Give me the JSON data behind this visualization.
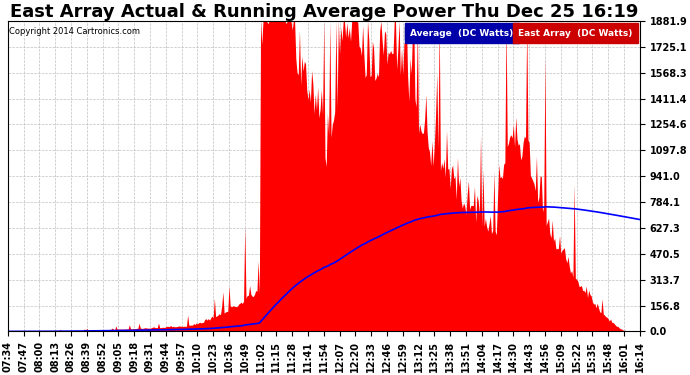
{
  "title": "East Array Actual & Running Average Power Thu Dec 25 16:19",
  "copyright": "Copyright 2014 Cartronics.com",
  "ylim": [
    0,
    1881.9
  ],
  "yticks": [
    0.0,
    156.8,
    313.7,
    470.5,
    627.3,
    784.1,
    941.0,
    1097.8,
    1254.6,
    1411.4,
    1568.3,
    1725.1,
    1881.9
  ],
  "legend_avg_label": "Average  (DC Watts)",
  "legend_east_label": "East Array  (DC Watts)",
  "avg_color": "#0000ff",
  "east_color": "#ff0000",
  "background_color": "#ffffff",
  "grid_color": "#c0c0c0",
  "title_fontsize": 13,
  "tick_fontsize": 7,
  "xticks": [
    "07:34",
    "07:47",
    "08:00",
    "08:13",
    "08:26",
    "08:39",
    "08:52",
    "09:05",
    "09:18",
    "09:31",
    "09:44",
    "09:57",
    "10:10",
    "10:23",
    "10:36",
    "10:49",
    "11:02",
    "11:15",
    "11:28",
    "11:41",
    "11:54",
    "12:07",
    "12:20",
    "12:33",
    "12:46",
    "12:59",
    "13:12",
    "13:25",
    "13:38",
    "13:51",
    "14:04",
    "14:17",
    "14:30",
    "14:43",
    "14:56",
    "15:09",
    "15:22",
    "15:35",
    "15:48",
    "16:01",
    "16:14"
  ]
}
